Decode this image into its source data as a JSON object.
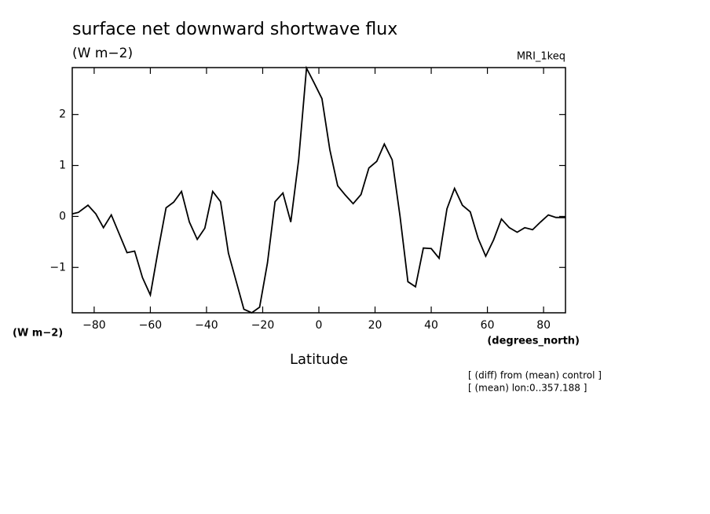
{
  "chart_data": {
    "type": "line",
    "title": "surface net downward shortwave flux",
    "subtitle": "(W m−2)",
    "model_label": "MRI_1keq",
    "y_axis_label": "(W m−2)",
    "x_units_label": "(degrees_north)",
    "x_axis_label": "Latitude",
    "annotations": [
      "[ (diff) from (mean) control ]",
      "[ (mean) lon:0..357.188 ]"
    ],
    "color": "#000000",
    "xlim": [
      -87.8,
      87.8
    ],
    "ylim": [
      -1.89,
      2.92
    ],
    "xticks": [
      {
        "value": -80,
        "label": "−80"
      },
      {
        "value": -60,
        "label": "−60"
      },
      {
        "value": -40,
        "label": "−40"
      },
      {
        "value": -20,
        "label": "−20"
      },
      0,
      20,
      40,
      60,
      80
    ],
    "yticks": [
      {
        "value": -1,
        "label": "−1"
      },
      0,
      1,
      2
    ],
    "x": [
      -87.8,
      -85.6,
      -82.2,
      -79.4,
      -76.7,
      -73.9,
      -71.1,
      -68.3,
      -65.6,
      -62.8,
      -60,
      -57.2,
      -54.4,
      -51.7,
      -48.9,
      -46.1,
      -43.3,
      -40.6,
      -37.8,
      -35,
      -32.2,
      -29.4,
      -26.7,
      -23.9,
      -21.1,
      -18.3,
      -15.6,
      -12.8,
      -10,
      -7.2,
      -4.4,
      -1.7,
      1.1,
      3.9,
      6.7,
      9.4,
      12.2,
      15,
      17.8,
      20.6,
      23.3,
      26.1,
      28.9,
      31.7,
      34.4,
      37.2,
      40,
      42.8,
      45.6,
      48.3,
      51.1,
      53.9,
      56.7,
      59.4,
      62.2,
      65,
      67.8,
      70.6,
      73.3,
      76.1,
      78.9,
      81.7,
      84.4,
      87.8
    ],
    "values": [
      0.05,
      0.08,
      0.22,
      0.05,
      -0.22,
      0.03,
      -0.34,
      -0.71,
      -0.68,
      -1.2,
      -1.54,
      -0.66,
      0.17,
      0.28,
      0.49,
      -0.11,
      -0.45,
      -0.23,
      0.49,
      0.29,
      -0.72,
      -1.28,
      -1.82,
      -1.89,
      -1.78,
      -0.91,
      0.29,
      0.46,
      -0.11,
      1.11,
      2.91,
      2.62,
      2.31,
      1.31,
      0.6,
      0.42,
      0.25,
      0.43,
      0.95,
      1.08,
      1.42,
      1.11,
      0,
      -1.28,
      -1.38,
      -0.62,
      -0.63,
      -0.82,
      0.15,
      0.55,
      0.22,
      0.09,
      -0.43,
      -0.78,
      -0.46,
      -0.05,
      -0.22,
      -0.31,
      -0.22,
      -0.26,
      -0.11,
      0.03,
      -0.02,
      -0.02
    ]
  }
}
